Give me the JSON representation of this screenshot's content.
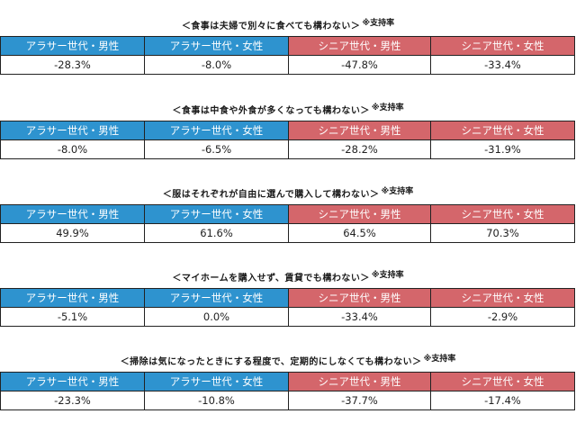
{
  "colors": {
    "arasa": "#2e93cf",
    "senior": "#d4666b"
  },
  "note": "※支持率",
  "headers": [
    "アラサー世代・男性",
    "アラサー世代・女性",
    "シニア世代・男性",
    "シニア世代・女性"
  ],
  "chart_data": {
    "type": "table",
    "columns": [
      "アラサー世代・男性",
      "アラサー世代・女性",
      "シニア世代・男性",
      "シニア世代・女性"
    ],
    "rows": [
      {
        "title": "＜食事は夫婦で別々に食べても構わない＞",
        "values": [
          "-28.3%",
          "-8.0%",
          "-47.8%",
          "-33.4%"
        ]
      },
      {
        "title": "＜食事は中食や外食が多くなっても構わない＞",
        "values": [
          "-8.0%",
          "-6.5%",
          "-28.2%",
          "-31.9%"
        ]
      },
      {
        "title": "＜服はそれぞれが自由に選んで購入して構わない＞",
        "values": [
          "49.9%",
          "61.6%",
          "64.5%",
          "70.3%"
        ]
      },
      {
        "title": "＜マイホームを購入せず、賃貸でも構わない＞",
        "values": [
          "-5.1%",
          "0.0%",
          "-33.4%",
          "-2.9%"
        ]
      },
      {
        "title": "＜掃除は気になったときにする程度で、定期的にしなくても構わない＞",
        "values": [
          "-23.3%",
          "-10.8%",
          "-37.7%",
          "-17.4%"
        ]
      }
    ]
  }
}
